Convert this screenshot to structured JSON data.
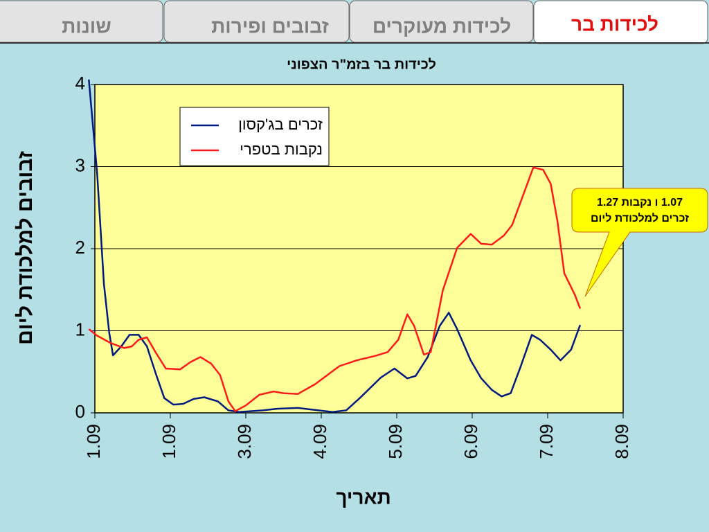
{
  "tabs": [
    "לכידות בר",
    "לכידות מעוקרים",
    "זבובים ופירות",
    "שונות"
  ],
  "chart_data": {
    "type": "line",
    "title": "לכידות בר בזמ\"ר הצפוני",
    "y_label": "זבובים למלכודת ליום",
    "x_label": "תאריך",
    "xlim": [
      0,
      7
    ],
    "xticks": [
      {
        "value": 0,
        "label": "1.09"
      },
      {
        "value": 1,
        "label": "1.09"
      },
      {
        "value": 2,
        "label": "3.09"
      },
      {
        "value": 3,
        "label": "4.09"
      },
      {
        "value": 4,
        "label": "5.09"
      },
      {
        "value": 5,
        "label": "6.09"
      },
      {
        "value": 6,
        "label": "7.09"
      },
      {
        "value": 7,
        "label": "8.09"
      }
    ],
    "ylim": [
      0,
      4
    ],
    "yticks": [
      0,
      1,
      2,
      3,
      4
    ],
    "grid": true,
    "plot_color": "#ffff99",
    "series": [
      {
        "name": "זכרים בג'קסון",
        "color": "#001a80",
        "x": [
          -0.08,
          0.03,
          0.12,
          0.19,
          0.24,
          0.35,
          0.46,
          0.58,
          0.69,
          0.81,
          0.92,
          1.04,
          1.17,
          1.31,
          1.45,
          1.63,
          1.77,
          1.91,
          2.23,
          2.41,
          2.69,
          2.96,
          3.15,
          3.33,
          3.51,
          3.79,
          3.97,
          4.14,
          4.25,
          4.41,
          4.57,
          4.69,
          4.8,
          4.98,
          5.12,
          5.26,
          5.39,
          5.51,
          5.64,
          5.79,
          5.9,
          6.04,
          6.17,
          6.31,
          6.43
        ],
        "values": [
          4.06,
          2.92,
          1.57,
          0.98,
          0.7,
          0.81,
          0.95,
          0.95,
          0.81,
          0.47,
          0.18,
          0.1,
          0.11,
          0.17,
          0.19,
          0.14,
          0.03,
          0.01,
          0.03,
          0.05,
          0.06,
          0.03,
          0.01,
          0.03,
          0.18,
          0.43,
          0.54,
          0.42,
          0.45,
          0.68,
          1.06,
          1.22,
          1.02,
          0.64,
          0.42,
          0.28,
          0.2,
          0.24,
          0.56,
          0.95,
          0.89,
          0.77,
          0.64,
          0.77,
          1.07
        ]
      },
      {
        "name": "נקבות בטפרי",
        "color": "#ff1a1a",
        "x": [
          -0.08,
          0.03,
          0.21,
          0.39,
          0.49,
          0.58,
          0.69,
          0.81,
          0.94,
          1.13,
          1.27,
          1.4,
          1.54,
          1.66,
          1.77,
          1.86,
          2.0,
          2.18,
          2.37,
          2.5,
          2.69,
          2.92,
          3.24,
          3.47,
          3.7,
          3.88,
          4.02,
          4.14,
          4.23,
          4.36,
          4.45,
          4.61,
          4.8,
          4.98,
          5.12,
          5.26,
          5.42,
          5.53,
          5.67,
          5.81,
          5.94,
          6.04,
          6.13,
          6.22,
          6.36,
          6.43
        ],
        "values": [
          1.02,
          0.94,
          0.85,
          0.79,
          0.81,
          0.89,
          0.92,
          0.73,
          0.54,
          0.53,
          0.62,
          0.68,
          0.6,
          0.46,
          0.14,
          0.02,
          0.09,
          0.22,
          0.26,
          0.24,
          0.23,
          0.35,
          0.57,
          0.64,
          0.69,
          0.74,
          0.89,
          1.2,
          1.06,
          0.71,
          0.74,
          1.49,
          2.01,
          2.18,
          2.06,
          2.05,
          2.16,
          2.29,
          2.64,
          2.99,
          2.96,
          2.79,
          2.33,
          1.7,
          1.44,
          1.27
        ]
      }
    ],
    "annotation": [
      "1.07 ו נקבות 1.27",
      "זכרים למלכודת ליום"
    ]
  }
}
